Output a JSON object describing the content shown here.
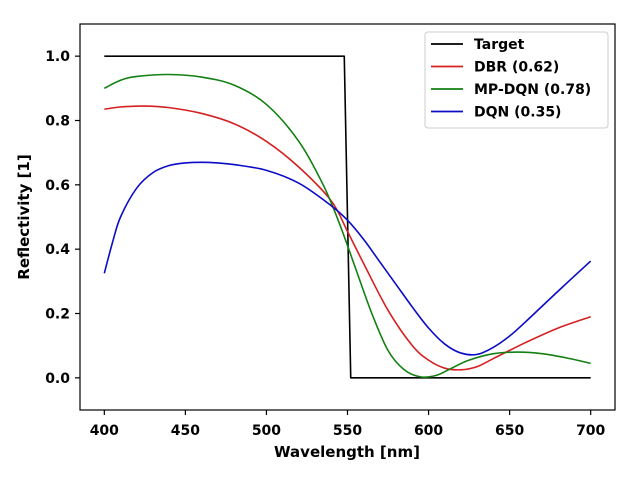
{
  "chart_data": {
    "type": "line",
    "title": "",
    "xlabel": "Wavelength [nm]",
    "ylabel": "Reflectivity [1]",
    "xlim": [
      385,
      715
    ],
    "ylim": [
      -0.1,
      1.1
    ],
    "xticks": [
      400,
      450,
      500,
      550,
      600,
      650,
      700
    ],
    "yticks": [
      0.0,
      0.2,
      0.4,
      0.6,
      0.8,
      1.0
    ],
    "ytick_labels": [
      "0.0",
      "0.2",
      "0.4",
      "0.6",
      "0.8",
      "1.0"
    ],
    "grid": false,
    "legend_position": "top-right",
    "series": [
      {
        "name": "Target",
        "color": "#000000",
        "x": [
          400,
          548,
          552,
          700
        ],
        "y": [
          1.0,
          1.0,
          0.0,
          0.0
        ]
      },
      {
        "name": "DBR (0.62)",
        "color": "#d62020",
        "x": [
          400,
          410,
          425,
          440,
          460,
          480,
          500,
          520,
          540,
          550,
          560,
          575,
          590,
          600,
          610,
          620,
          630,
          640,
          660,
          680,
          700
        ],
        "y": [
          0.835,
          0.842,
          0.845,
          0.84,
          0.822,
          0.79,
          0.735,
          0.655,
          0.55,
          0.455,
          0.355,
          0.21,
          0.1,
          0.055,
          0.03,
          0.025,
          0.035,
          0.06,
          0.11,
          0.155,
          0.19
        ]
      },
      {
        "name": "MP-DQN (0.78)",
        "color": "#138013",
        "x": [
          400,
          410,
          420,
          440,
          460,
          480,
          500,
          520,
          535,
          545,
          555,
          565,
          575,
          585,
          595,
          605,
          615,
          625,
          640,
          655,
          670,
          685,
          700
        ],
        "y": [
          0.9,
          0.925,
          0.937,
          0.943,
          0.935,
          0.91,
          0.85,
          0.735,
          0.6,
          0.48,
          0.34,
          0.2,
          0.085,
          0.025,
          0.003,
          0.008,
          0.032,
          0.055,
          0.075,
          0.08,
          0.075,
          0.062,
          0.045
        ]
      },
      {
        "name": "DQN (0.35)",
        "color": "#0b0bc8",
        "x": [
          400,
          405,
          410,
          420,
          430,
          440,
          450,
          460,
          470,
          480,
          500,
          520,
          540,
          550,
          560,
          570,
          580,
          590,
          600,
          610,
          620,
          630,
          640,
          650,
          660,
          680,
          700
        ],
        "y": [
          0.325,
          0.42,
          0.5,
          0.59,
          0.638,
          0.66,
          0.668,
          0.67,
          0.668,
          0.663,
          0.645,
          0.605,
          0.535,
          0.49,
          0.43,
          0.36,
          0.29,
          0.22,
          0.155,
          0.105,
          0.077,
          0.073,
          0.095,
          0.13,
          0.175,
          0.27,
          0.363
        ]
      }
    ]
  }
}
